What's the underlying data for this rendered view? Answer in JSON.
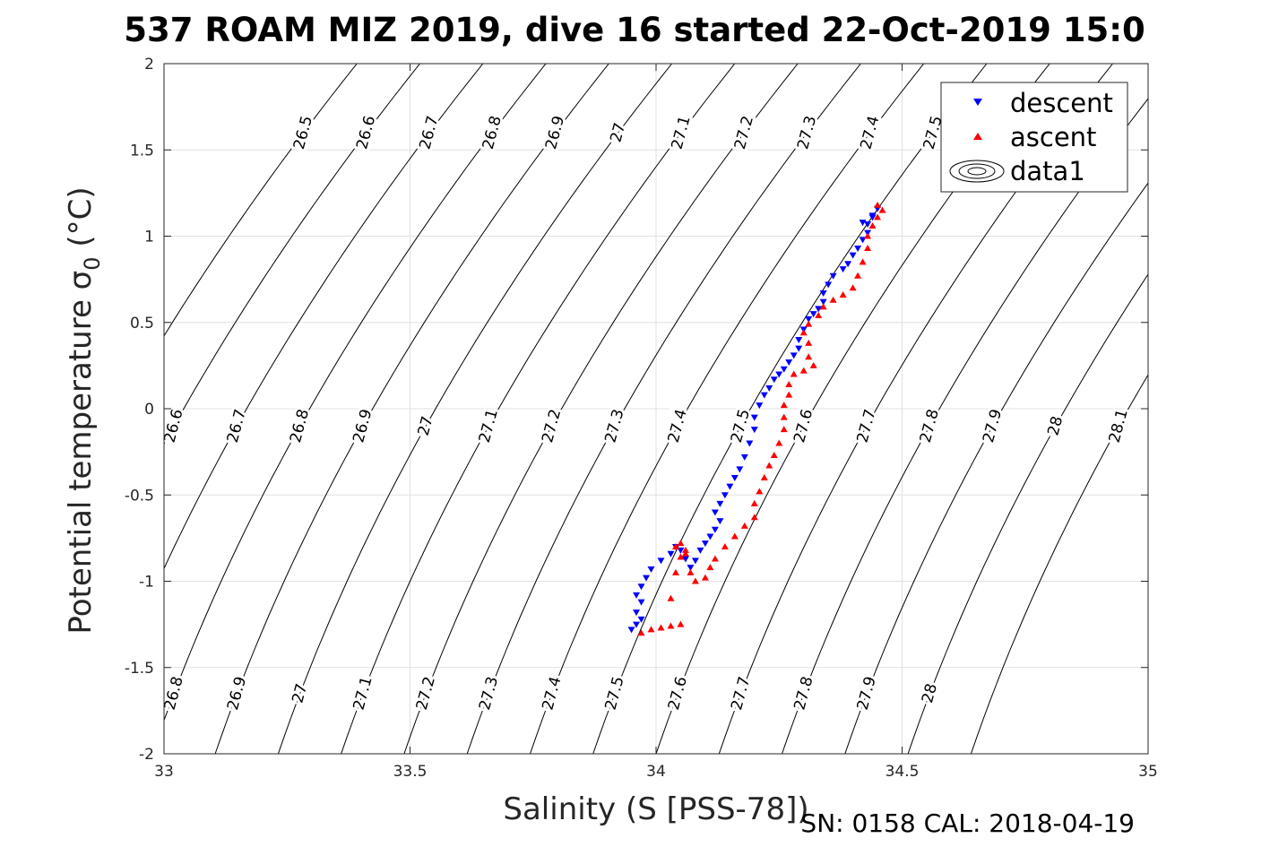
{
  "chart_data": {
    "type": "scatter",
    "title": "537 ROAM MIZ 2019, dive 16 started 22-Oct-2019 15:0",
    "xlabel": "Salinity (S [PSS-78])",
    "ylabel_main": "Potential temperature σ",
    "ylabel_sub": "0",
    "ylabel_unit": " (°C)",
    "xlim": [
      33,
      35
    ],
    "ylim": [
      -2,
      2
    ],
    "xticks": [
      33,
      33.5,
      34,
      34.5,
      35
    ],
    "xtick_labels": [
      "33",
      "33.5",
      "34",
      "34.5",
      "35"
    ],
    "yticks": [
      2,
      1.5,
      1,
      0.5,
      0,
      -0.5,
      -1,
      -1.5,
      -2
    ],
    "ytick_labels": [
      "2",
      "1.5",
      "1",
      "0.5",
      "0",
      "-0.5",
      "-1",
      "-1.5",
      "-2"
    ],
    "grid": true,
    "legend_position": "top-right",
    "footer": "SN: 0158  CAL: 2018-04-19",
    "colors": {
      "descent": "#0000ff",
      "ascent": "#ff0000",
      "contour": "#000000",
      "grid": "#e0e0e0"
    },
    "density_contours": {
      "levels": [
        26.5,
        26.6,
        26.7,
        26.8,
        26.9,
        27,
        27.1,
        27.2,
        27.3,
        27.4,
        27.5,
        27.6,
        27.7,
        27.8,
        27.9,
        28,
        28.1
      ],
      "level_labels": [
        "26.5",
        "26.6",
        "26.7",
        "26.8",
        "26.9",
        "27",
        "27.1",
        "27.2",
        "27.3",
        "27.4",
        "27.5",
        "27.6",
        "27.7",
        "27.8",
        "27.9",
        "28",
        "28.1"
      ],
      "label_rows": [
        {
          "y": 1.6,
          "levels": [
            "26.5",
            "26.6",
            "26.7",
            "26.8",
            "26.9",
            "27",
            "27.1",
            "27.2",
            "27.3",
            "27.4",
            "27.5",
            "27.6",
            "28"
          ]
        },
        {
          "y": -0.1,
          "levels": [
            "26.5",
            "26.6",
            "26.7",
            "26.8",
            "26.9",
            "27",
            "27.1",
            "27.2",
            "27.3",
            "27.4",
            "27.5",
            "27.6",
            "27.7",
            "27.8",
            "27.9",
            "28",
            "28.1"
          ]
        },
        {
          "y": -1.65,
          "levels": [
            "26.6",
            "26.7",
            "26.8",
            "26.9",
            "27",
            "27.1",
            "27.2",
            "27.3",
            "27.4",
            "27.5",
            "27.6",
            "27.7",
            "27.8",
            "27.9",
            "28"
          ]
        }
      ]
    },
    "series": [
      {
        "name": "descent",
        "marker": "triangle-down",
        "points": [
          [
            33.95,
            -1.28
          ],
          [
            33.96,
            -1.25
          ],
          [
            33.97,
            -1.22
          ],
          [
            33.96,
            -1.18
          ],
          [
            33.97,
            -1.12
          ],
          [
            33.96,
            -1.08
          ],
          [
            33.97,
            -1.03
          ],
          [
            33.98,
            -0.98
          ],
          [
            33.99,
            -0.93
          ],
          [
            34.01,
            -0.88
          ],
          [
            34.03,
            -0.84
          ],
          [
            34.04,
            -0.8
          ],
          [
            34.05,
            -0.82
          ],
          [
            34.06,
            -0.87
          ],
          [
            34.07,
            -0.92
          ],
          [
            34.08,
            -0.88
          ],
          [
            34.09,
            -0.82
          ],
          [
            34.1,
            -0.78
          ],
          [
            34.11,
            -0.74
          ],
          [
            34.12,
            -0.7
          ],
          [
            34.13,
            -0.65
          ],
          [
            34.12,
            -0.6
          ],
          [
            34.13,
            -0.55
          ],
          [
            34.14,
            -0.5
          ],
          [
            34.15,
            -0.45
          ],
          [
            34.16,
            -0.4
          ],
          [
            34.17,
            -0.35
          ],
          [
            34.18,
            -0.28
          ],
          [
            34.19,
            -0.2
          ],
          [
            34.2,
            -0.12
          ],
          [
            34.2,
            -0.05
          ],
          [
            34.21,
            0.02
          ],
          [
            34.22,
            0.08
          ],
          [
            34.23,
            0.12
          ],
          [
            34.24,
            0.17
          ],
          [
            34.25,
            0.2
          ],
          [
            34.26,
            0.23
          ],
          [
            34.27,
            0.27
          ],
          [
            34.28,
            0.31
          ],
          [
            34.29,
            0.35
          ],
          [
            34.29,
            0.4
          ],
          [
            34.3,
            0.46
          ],
          [
            34.31,
            0.52
          ],
          [
            34.32,
            0.55
          ],
          [
            34.33,
            0.58
          ],
          [
            34.34,
            0.62
          ],
          [
            34.34,
            0.67
          ],
          [
            34.35,
            0.72
          ],
          [
            34.36,
            0.77
          ],
          [
            34.38,
            0.81
          ],
          [
            34.39,
            0.84
          ],
          [
            34.4,
            0.89
          ],
          [
            34.41,
            0.93
          ],
          [
            34.42,
            0.98
          ],
          [
            34.43,
            1.02
          ],
          [
            34.43,
            1.07
          ],
          [
            34.44,
            1.11
          ],
          [
            34.45,
            1.16
          ],
          [
            34.44,
            1.12
          ],
          [
            34.42,
            1.08
          ]
        ]
      },
      {
        "name": "ascent",
        "marker": "triangle-up",
        "points": [
          [
            33.97,
            -1.3
          ],
          [
            33.99,
            -1.28
          ],
          [
            34.01,
            -1.27
          ],
          [
            34.03,
            -1.26
          ],
          [
            34.05,
            -1.25
          ],
          [
            34.03,
            -1.1
          ],
          [
            34.04,
            -0.95
          ],
          [
            34.05,
            -0.86
          ],
          [
            34.06,
            -0.82
          ],
          [
            34.05,
            -0.78
          ],
          [
            34.04,
            -0.8
          ],
          [
            34.06,
            -0.84
          ],
          [
            34.07,
            -0.95
          ],
          [
            34.08,
            -1.0
          ],
          [
            34.1,
            -0.98
          ],
          [
            34.11,
            -0.92
          ],
          [
            34.12,
            -0.87
          ],
          [
            34.14,
            -0.8
          ],
          [
            34.16,
            -0.74
          ],
          [
            34.18,
            -0.68
          ],
          [
            34.2,
            -0.63
          ],
          [
            34.2,
            -0.55
          ],
          [
            34.21,
            -0.48
          ],
          [
            34.22,
            -0.4
          ],
          [
            34.23,
            -0.33
          ],
          [
            34.24,
            -0.27
          ],
          [
            34.25,
            -0.2
          ],
          [
            34.26,
            -0.12
          ],
          [
            34.26,
            -0.05
          ],
          [
            34.26,
            0.02
          ],
          [
            34.27,
            0.08
          ],
          [
            34.27,
            0.14
          ],
          [
            34.28,
            0.2
          ],
          [
            34.3,
            0.22
          ],
          [
            34.32,
            0.25
          ],
          [
            34.31,
            0.3
          ],
          [
            34.31,
            0.38
          ],
          [
            34.3,
            0.44
          ],
          [
            34.31,
            0.49
          ],
          [
            34.33,
            0.54
          ],
          [
            34.34,
            0.59
          ],
          [
            34.36,
            0.63
          ],
          [
            34.38,
            0.66
          ],
          [
            34.4,
            0.7
          ],
          [
            34.41,
            0.77
          ],
          [
            34.42,
            0.85
          ],
          [
            34.43,
            0.93
          ],
          [
            34.43,
            1.0
          ],
          [
            34.44,
            1.06
          ],
          [
            34.45,
            1.11
          ],
          [
            34.46,
            1.15
          ],
          [
            34.45,
            1.18
          ]
        ]
      },
      {
        "name": "data1",
        "marker": "contour",
        "points": []
      }
    ]
  }
}
